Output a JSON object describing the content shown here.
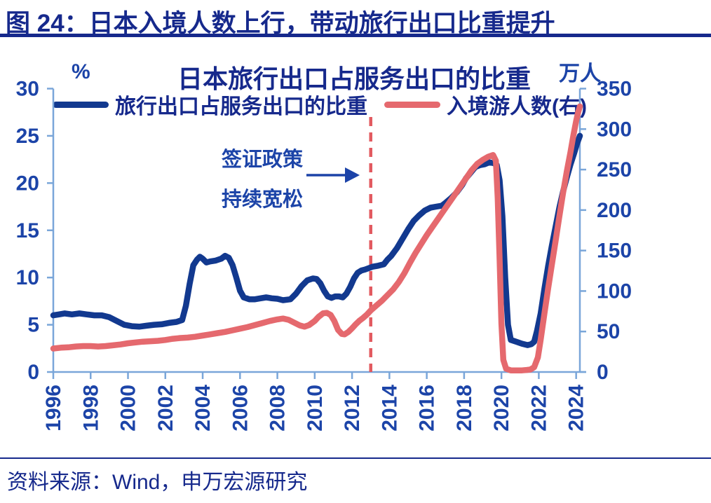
{
  "page": {
    "figure_title": "图 24：日本入境人数上行，带动旅行出口比重提升",
    "source": "资料来源：Wind，申万宏源研究"
  },
  "chart": {
    "title": "日本旅行出口占服务出口的比重",
    "left_axis_unit": "%",
    "right_axis_unit": "万人",
    "legend": [
      {
        "label": "旅行出口占服务出口的比重",
        "color": "#12398f"
      },
      {
        "label": "入境游人数(右)",
        "color": "#e5696e"
      }
    ],
    "annotation": {
      "line1": "签证政策",
      "line2": "持续宽松"
    }
  },
  "colors": {
    "navy_text": "#16298c",
    "tick_text": "#1c44a8",
    "axis": "#7aa6d9",
    "blue_line": "#12398f",
    "red_line": "#e5696e",
    "dashed_line": "#e25a60",
    "arrow": "#1c43a8"
  },
  "chart_data": {
    "type": "line",
    "title": "日本旅行出口占服务出口的比重",
    "legend_position": "top",
    "grid": false,
    "x_range": [
      1996,
      2024.2
    ],
    "x_ticks": [
      1996,
      1998,
      2000,
      2002,
      2004,
      2006,
      2008,
      2010,
      2012,
      2014,
      2016,
      2018,
      2020,
      2022,
      2024
    ],
    "left_axis": {
      "label": "%",
      "min": 0,
      "max": 30,
      "ticks": [
        0,
        5,
        10,
        15,
        20,
        25,
        30
      ]
    },
    "right_axis": {
      "label": "万人",
      "min": 0,
      "max": 350,
      "ticks": [
        0,
        50,
        100,
        150,
        200,
        250,
        300,
        350
      ]
    },
    "event_line": {
      "x": 2013,
      "style": "dashed",
      "label": "签证政策持续宽松"
    },
    "series": [
      {
        "name": "旅行出口占服务出口的比重",
        "axis": "left",
        "unit": "%",
        "color": "#12398f",
        "points": [
          [
            1996.0,
            6.0
          ],
          [
            1996.3,
            6.1
          ],
          [
            1996.6,
            6.2
          ],
          [
            1997.0,
            6.1
          ],
          [
            1997.4,
            6.2
          ],
          [
            1997.8,
            6.1
          ],
          [
            1998.2,
            6.0
          ],
          [
            1998.6,
            6.0
          ],
          [
            1999.0,
            5.8
          ],
          [
            1999.4,
            5.4
          ],
          [
            1999.8,
            5.0
          ],
          [
            2000.2,
            4.85
          ],
          [
            2000.6,
            4.8
          ],
          [
            2001.0,
            4.9
          ],
          [
            2001.4,
            5.0
          ],
          [
            2001.8,
            5.05
          ],
          [
            2002.2,
            5.2
          ],
          [
            2002.6,
            5.3
          ],
          [
            2002.9,
            5.5
          ],
          [
            2003.1,
            7.0
          ],
          [
            2003.3,
            9.3
          ],
          [
            2003.5,
            11.3
          ],
          [
            2003.7,
            11.9
          ],
          [
            2003.85,
            12.2
          ],
          [
            2004.0,
            12.0
          ],
          [
            2004.2,
            11.6
          ],
          [
            2004.4,
            11.7
          ],
          [
            2004.7,
            11.8
          ],
          [
            2005.0,
            12.0
          ],
          [
            2005.2,
            12.3
          ],
          [
            2005.4,
            12.1
          ],
          [
            2005.6,
            11.3
          ],
          [
            2005.8,
            10.0
          ],
          [
            2006.0,
            8.6
          ],
          [
            2006.2,
            7.9
          ],
          [
            2006.5,
            7.7
          ],
          [
            2006.8,
            7.7
          ],
          [
            2007.1,
            7.8
          ],
          [
            2007.4,
            7.9
          ],
          [
            2007.7,
            7.8
          ],
          [
            2008.0,
            7.75
          ],
          [
            2008.3,
            7.6
          ],
          [
            2008.7,
            7.7
          ],
          [
            2009.0,
            8.3
          ],
          [
            2009.3,
            9.1
          ],
          [
            2009.6,
            9.7
          ],
          [
            2009.9,
            9.9
          ],
          [
            2010.1,
            9.85
          ],
          [
            2010.3,
            9.4
          ],
          [
            2010.5,
            8.6
          ],
          [
            2010.7,
            8.0
          ],
          [
            2010.9,
            7.85
          ],
          [
            2011.1,
            8.0
          ],
          [
            2011.3,
            8.0
          ],
          [
            2011.5,
            7.9
          ],
          [
            2011.7,
            8.3
          ],
          [
            2011.9,
            9.0
          ],
          [
            2012.1,
            9.9
          ],
          [
            2012.3,
            10.5
          ],
          [
            2012.5,
            10.75
          ],
          [
            2012.7,
            10.85
          ],
          [
            2012.9,
            11.0
          ],
          [
            2013.1,
            11.15
          ],
          [
            2013.4,
            11.25
          ],
          [
            2013.7,
            11.4
          ],
          [
            2013.9,
            11.9
          ],
          [
            2014.1,
            12.3
          ],
          [
            2014.4,
            13.1
          ],
          [
            2014.7,
            14.1
          ],
          [
            2015.0,
            15.1
          ],
          [
            2015.3,
            16.0
          ],
          [
            2015.6,
            16.6
          ],
          [
            2015.9,
            17.1
          ],
          [
            2016.2,
            17.4
          ],
          [
            2016.5,
            17.5
          ],
          [
            2016.8,
            17.6
          ],
          [
            2017.0,
            17.9
          ],
          [
            2017.3,
            18.4
          ],
          [
            2017.6,
            19.0
          ],
          [
            2017.9,
            19.8
          ],
          [
            2018.1,
            20.5
          ],
          [
            2018.35,
            21.1
          ],
          [
            2018.6,
            21.7
          ],
          [
            2018.85,
            21.9
          ],
          [
            2019.1,
            22.0
          ],
          [
            2019.35,
            22.2
          ],
          [
            2019.6,
            22.1
          ],
          [
            2019.75,
            21.9
          ],
          [
            2019.9,
            20.3
          ],
          [
            2020.05,
            16.5
          ],
          [
            2020.2,
            10.0
          ],
          [
            2020.35,
            5.0
          ],
          [
            2020.5,
            3.4
          ],
          [
            2020.8,
            3.2
          ],
          [
            2021.1,
            3.0
          ],
          [
            2021.4,
            2.85
          ],
          [
            2021.6,
            2.95
          ],
          [
            2021.75,
            3.2
          ],
          [
            2021.9,
            4.3
          ],
          [
            2022.1,
            6.2
          ],
          [
            2022.3,
            8.8
          ],
          [
            2022.5,
            11.2
          ],
          [
            2022.7,
            13.4
          ],
          [
            2022.9,
            15.4
          ],
          [
            2023.1,
            17.4
          ],
          [
            2023.3,
            19.1
          ],
          [
            2023.5,
            20.6
          ],
          [
            2023.7,
            22.0
          ],
          [
            2023.9,
            23.2
          ],
          [
            2024.05,
            24.2
          ],
          [
            2024.2,
            25.0
          ]
        ]
      },
      {
        "name": "入境游人数(右)",
        "axis": "right",
        "unit": "万人",
        "color": "#e5696e",
        "points": [
          [
            1996.0,
            29
          ],
          [
            1996.4,
            30
          ],
          [
            1996.8,
            30.5
          ],
          [
            1997.2,
            31.5
          ],
          [
            1997.6,
            32
          ],
          [
            1998.0,
            32
          ],
          [
            1998.4,
            31.5
          ],
          [
            1998.8,
            32
          ],
          [
            1999.2,
            33
          ],
          [
            1999.6,
            34
          ],
          [
            2000.0,
            35.5
          ],
          [
            2000.4,
            36.5
          ],
          [
            2000.8,
            37.5
          ],
          [
            2001.2,
            38
          ],
          [
            2001.6,
            38.5
          ],
          [
            2002.0,
            39.5
          ],
          [
            2002.4,
            41
          ],
          [
            2002.8,
            42
          ],
          [
            2003.2,
            42.5
          ],
          [
            2003.6,
            43.5
          ],
          [
            2004.0,
            45
          ],
          [
            2004.4,
            46.5
          ],
          [
            2004.8,
            48
          ],
          [
            2005.2,
            49.5
          ],
          [
            2005.6,
            51.5
          ],
          [
            2006.0,
            53.5
          ],
          [
            2006.4,
            55.5
          ],
          [
            2006.8,
            58
          ],
          [
            2007.2,
            60.5
          ],
          [
            2007.6,
            63
          ],
          [
            2008.0,
            65
          ],
          [
            2008.3,
            66
          ],
          [
            2008.6,
            64.5
          ],
          [
            2008.9,
            61
          ],
          [
            2009.2,
            57.5
          ],
          [
            2009.45,
            56
          ],
          [
            2009.7,
            58
          ],
          [
            2010.0,
            63
          ],
          [
            2010.2,
            68
          ],
          [
            2010.45,
            72.5
          ],
          [
            2010.65,
            73
          ],
          [
            2010.85,
            70.5
          ],
          [
            2011.05,
            63
          ],
          [
            2011.25,
            52
          ],
          [
            2011.45,
            47
          ],
          [
            2011.6,
            46.5
          ],
          [
            2011.8,
            49.5
          ],
          [
            2012.0,
            54
          ],
          [
            2012.2,
            59
          ],
          [
            2012.4,
            63.5
          ],
          [
            2012.6,
            67
          ],
          [
            2012.8,
            71
          ],
          [
            2013.0,
            76
          ],
          [
            2013.3,
            82
          ],
          [
            2013.6,
            88
          ],
          [
            2013.9,
            95
          ],
          [
            2014.2,
            102
          ],
          [
            2014.5,
            111
          ],
          [
            2014.8,
            122
          ],
          [
            2015.1,
            135
          ],
          [
            2015.4,
            147
          ],
          [
            2015.7,
            158
          ],
          [
            2016.0,
            169
          ],
          [
            2016.3,
            179
          ],
          [
            2016.6,
            189
          ],
          [
            2016.9,
            199
          ],
          [
            2017.2,
            209
          ],
          [
            2017.5,
            219
          ],
          [
            2017.8,
            229
          ],
          [
            2018.1,
            239
          ],
          [
            2018.4,
            249
          ],
          [
            2018.7,
            257
          ],
          [
            2019.0,
            262
          ],
          [
            2019.3,
            266
          ],
          [
            2019.55,
            268
          ],
          [
            2019.7,
            261
          ],
          [
            2019.8,
            215
          ],
          [
            2019.9,
            140
          ],
          [
            2020.0,
            60
          ],
          [
            2020.1,
            15
          ],
          [
            2020.25,
            4
          ],
          [
            2020.5,
            2
          ],
          [
            2020.8,
            2
          ],
          [
            2021.1,
            2
          ],
          [
            2021.35,
            2.5
          ],
          [
            2021.55,
            3
          ],
          [
            2021.75,
            6
          ],
          [
            2021.95,
            18
          ],
          [
            2022.1,
            40
          ],
          [
            2022.3,
            72
          ],
          [
            2022.5,
            103
          ],
          [
            2022.7,
            133
          ],
          [
            2022.9,
            162
          ],
          [
            2023.1,
            192
          ],
          [
            2023.3,
            221
          ],
          [
            2023.5,
            248
          ],
          [
            2023.7,
            272
          ],
          [
            2023.85,
            292
          ],
          [
            2024.0,
            310
          ],
          [
            2024.1,
            320
          ],
          [
            2024.2,
            328
          ]
        ]
      }
    ]
  }
}
